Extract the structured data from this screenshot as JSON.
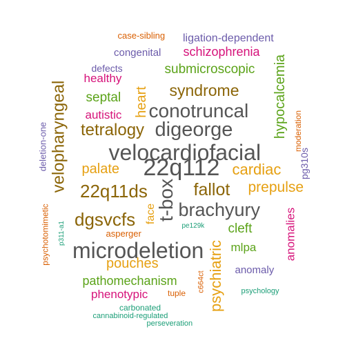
{
  "words": [
    {
      "id": "w01",
      "text": "22q112",
      "color": "#555555"
    },
    {
      "id": "w02",
      "text": "velocardiofacial",
      "color": "#555555"
    },
    {
      "id": "w03",
      "text": "microdeletion",
      "color": "#555555"
    },
    {
      "id": "w04",
      "text": "digeorge",
      "color": "#555555"
    },
    {
      "id": "w05",
      "text": "conotruncal",
      "color": "#555555"
    },
    {
      "id": "w06",
      "text": "brachyury",
      "color": "#555555"
    },
    {
      "id": "w07",
      "text": "t-box",
      "color": "#555555"
    },
    {
      "id": "w08",
      "text": "22q11ds",
      "color": "#8B6508"
    },
    {
      "id": "w09",
      "text": "dgsvcfs",
      "color": "#8B6508"
    },
    {
      "id": "w10",
      "text": "tetralogy",
      "color": "#8B6508"
    },
    {
      "id": "w11",
      "text": "fallot",
      "color": "#8B6508"
    },
    {
      "id": "w12",
      "text": "syndrome",
      "color": "#8B6508"
    },
    {
      "id": "w13",
      "text": "velopharyngeal",
      "color": "#8B6508"
    },
    {
      "id": "w14",
      "text": "cardiac",
      "color": "#E6A012"
    },
    {
      "id": "w15",
      "text": "prepulse",
      "color": "#E6A012"
    },
    {
      "id": "w16",
      "text": "palate",
      "color": "#E6A012"
    },
    {
      "id": "w17",
      "text": "pouches",
      "color": "#E6A012"
    },
    {
      "id": "w18",
      "text": "heart",
      "color": "#E6A012"
    },
    {
      "id": "w19",
      "text": "psychiatric",
      "color": "#E6A012"
    },
    {
      "id": "w20",
      "text": "face",
      "color": "#E6A012"
    },
    {
      "id": "w21",
      "text": "hypocalcemia",
      "color": "#5BA319"
    },
    {
      "id": "w22",
      "text": "submicroscopic",
      "color": "#5BA319"
    },
    {
      "id": "w23",
      "text": "septal",
      "color": "#5BA319"
    },
    {
      "id": "w24",
      "text": "cleft",
      "color": "#5BA319"
    },
    {
      "id": "w25",
      "text": "mlpa",
      "color": "#5BA319"
    },
    {
      "id": "w26",
      "text": "pathomechanism",
      "color": "#5BA319"
    },
    {
      "id": "w27",
      "text": "schizophrenia",
      "color": "#D6127A"
    },
    {
      "id": "w28",
      "text": "healthy",
      "color": "#D6127A"
    },
    {
      "id": "w29",
      "text": "autistic",
      "color": "#D6127A"
    },
    {
      "id": "w30",
      "text": "anomalies",
      "color": "#D6127A"
    },
    {
      "id": "w31",
      "text": "phenotypic",
      "color": "#D6127A"
    },
    {
      "id": "w32",
      "text": "congenital",
      "color": "#6B5BAA"
    },
    {
      "id": "w33",
      "text": "ligation-dependent",
      "color": "#6B5BAA"
    },
    {
      "id": "w34",
      "text": "defects",
      "color": "#6B5BAA"
    },
    {
      "id": "w35",
      "text": "deletion-one",
      "color": "#6B5BAA"
    },
    {
      "id": "w36",
      "text": "pg310s",
      "color": "#6B5BAA"
    },
    {
      "id": "w37",
      "text": "anomaly",
      "color": "#6B5BAA"
    },
    {
      "id": "w38",
      "text": "case-sibling",
      "color": "#D95F02"
    },
    {
      "id": "w39",
      "text": "moderation",
      "color": "#D95F02"
    },
    {
      "id": "w40",
      "text": "psychotomimetic",
      "color": "#D95F02"
    },
    {
      "id": "w41",
      "text": "asperger",
      "color": "#D95F02"
    },
    {
      "id": "w42",
      "text": "c664ct",
      "color": "#D95F02"
    },
    {
      "id": "w43",
      "text": "tuple",
      "color": "#D95F02"
    },
    {
      "id": "w44",
      "text": "p311-a1",
      "color": "#1B9E77"
    },
    {
      "id": "w45",
      "text": "pe129k",
      "color": "#1B9E77"
    },
    {
      "id": "w46",
      "text": "carbonated",
      "color": "#1B9E77"
    },
    {
      "id": "w47",
      "text": "cannabinoid-regulated",
      "color": "#1B9E77"
    },
    {
      "id": "w48",
      "text": "perseveration",
      "color": "#1B9E77"
    },
    {
      "id": "w49",
      "text": "psychology",
      "color": "#1B9E77"
    }
  ]
}
